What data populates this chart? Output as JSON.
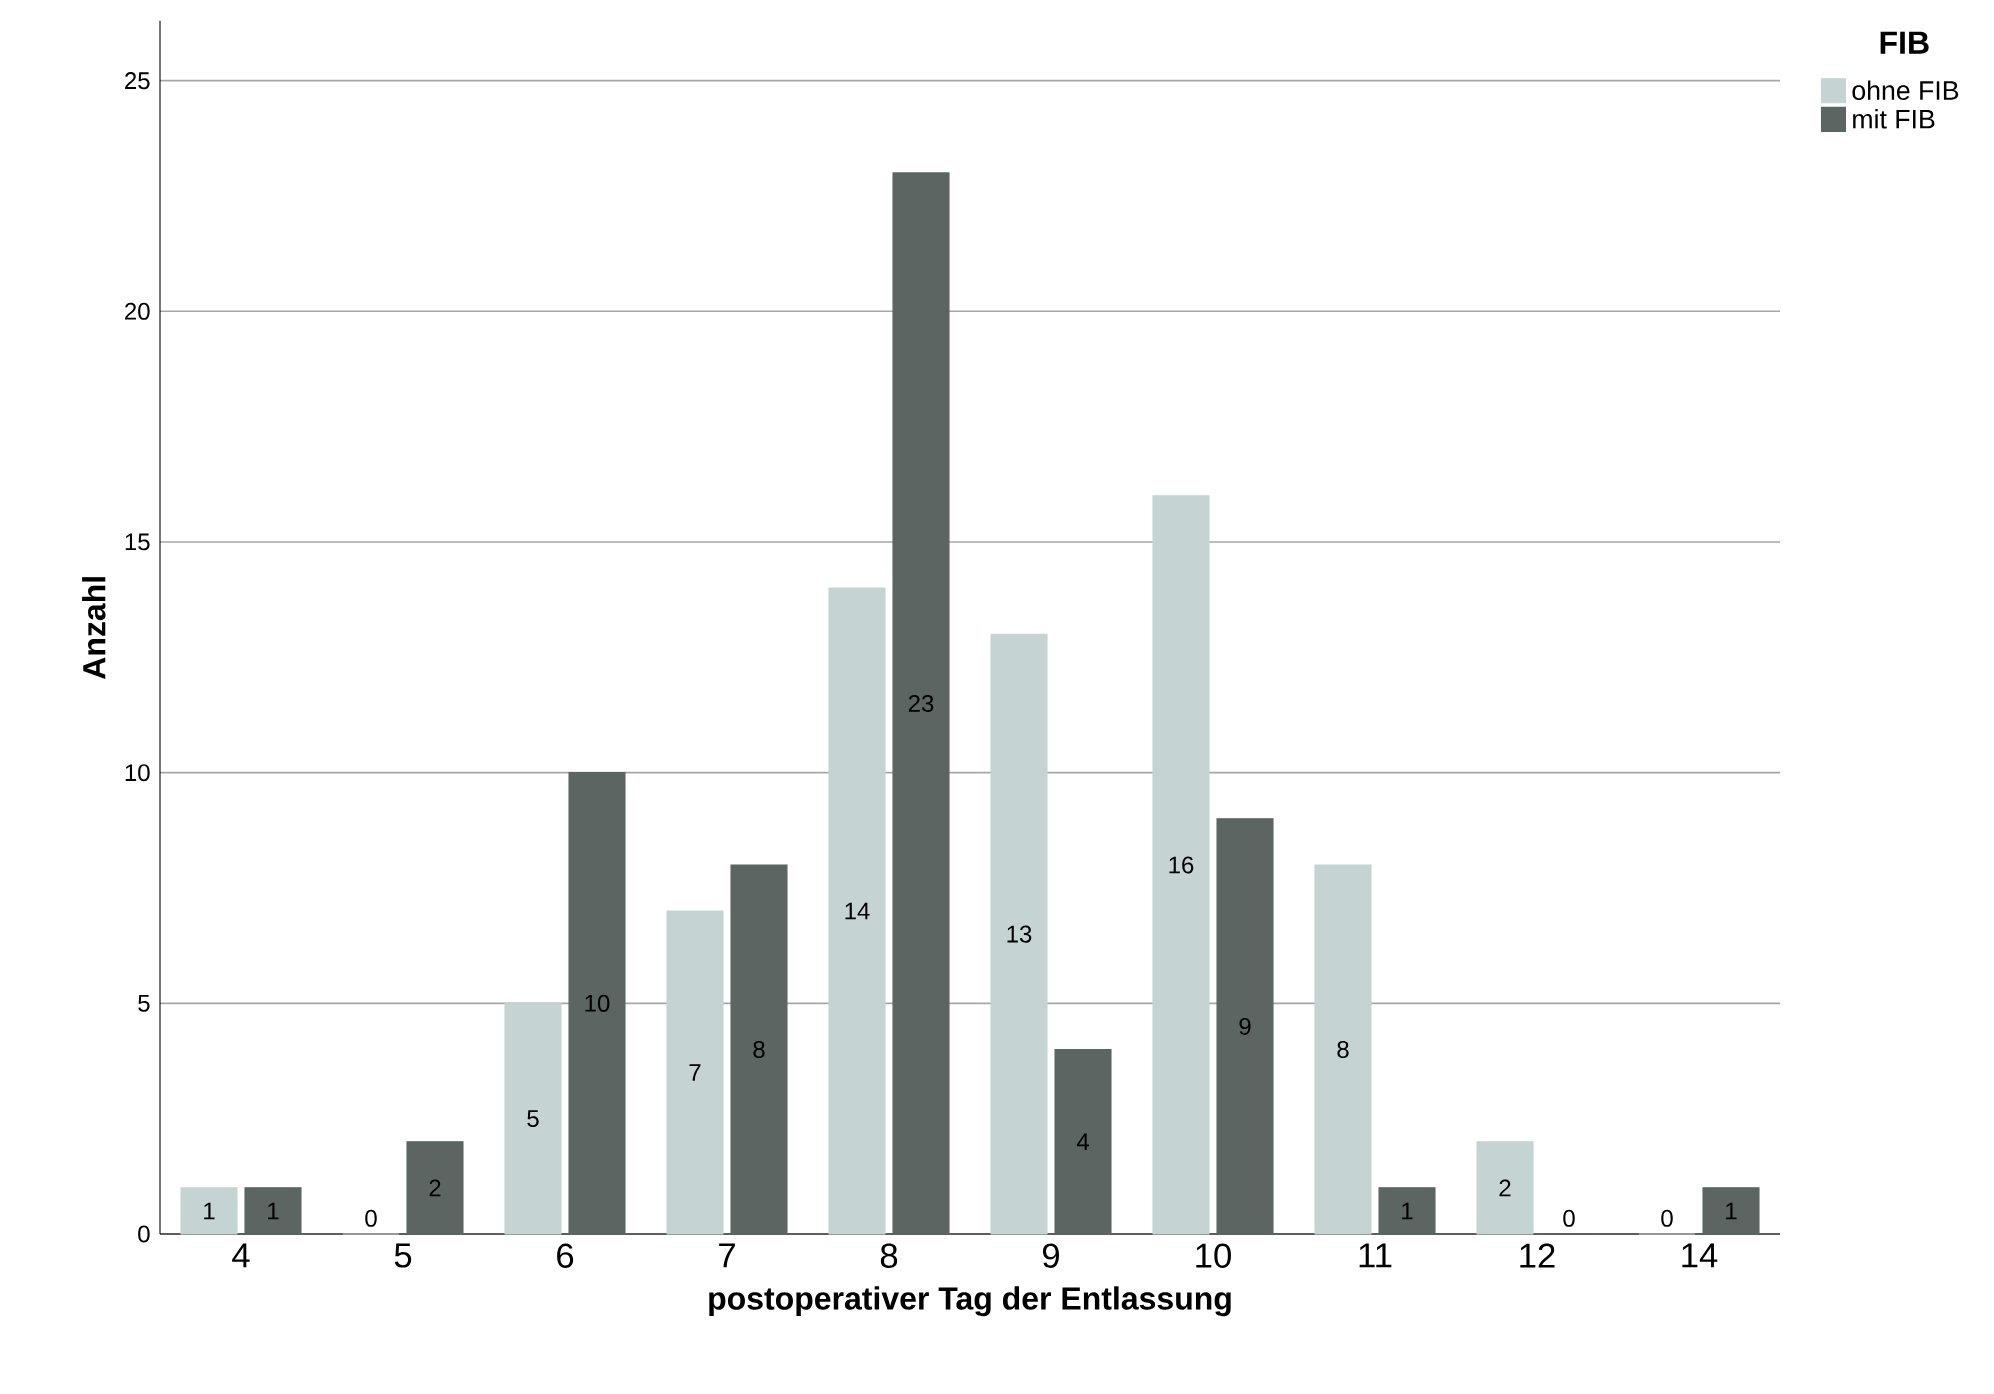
{
  "chart_data": {
    "type": "bar",
    "xlabel": "postoperativer Tag der Entlassung",
    "ylabel": "Anzahl",
    "legend_title": "FIB",
    "categories": [
      "4",
      "5",
      "6",
      "7",
      "8",
      "9",
      "10",
      "11",
      "12",
      "14"
    ],
    "series": [
      {
        "name": "ohne FIB",
        "color": "#c5d3d3",
        "values": [
          1,
          0,
          5,
          7,
          14,
          13,
          16,
          8,
          2,
          0
        ]
      },
      {
        "name": "mit FIB",
        "color": "#5c6562",
        "values": [
          1,
          2,
          10,
          8,
          23,
          4,
          9,
          1,
          0,
          1
        ]
      }
    ],
    "ylim": [
      0,
      26.3
    ],
    "yticks": [
      0,
      5,
      10,
      15,
      20,
      25
    ],
    "grid": "y",
    "legend": "top right",
    "data_labels": true
  }
}
